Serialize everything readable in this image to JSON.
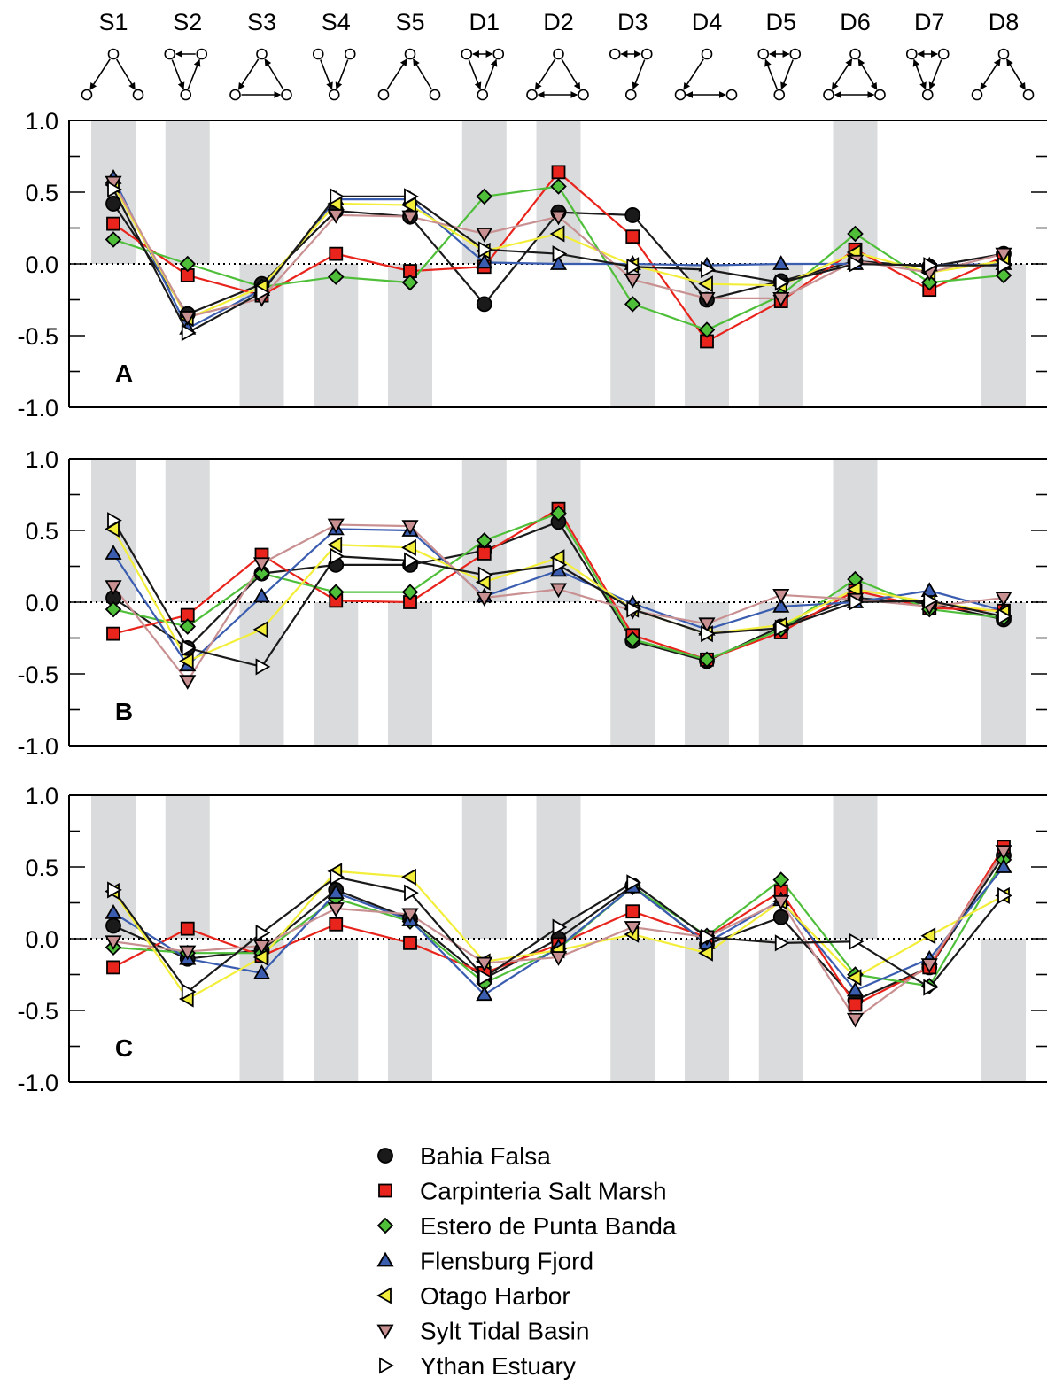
{
  "motifs": [
    "S1",
    "S2",
    "S3",
    "S4",
    "S5",
    "D1",
    "D2",
    "D3",
    "D4",
    "D5",
    "D6",
    "D7",
    "D8"
  ],
  "yticks": [
    "1.0",
    "0.5",
    "0.0",
    "-0.5",
    "-1.0"
  ],
  "shaded": [
    [
      0,
      1,
      5,
      6,
      10
    ],
    [
      0,
      1,
      5,
      6,
      10
    ],
    [
      0,
      1,
      5,
      6,
      10
    ]
  ],
  "shaded_below": [
    [
      2,
      3,
      4,
      7,
      8,
      9,
      12
    ],
    [
      2,
      3,
      4,
      7,
      8,
      9,
      12
    ],
    [
      2,
      3,
      4,
      7,
      8,
      9,
      12
    ]
  ],
  "series_style": [
    {
      "color": "#1a1a1a",
      "marker": "circle"
    },
    {
      "color": "#e8241c",
      "marker": "square"
    },
    {
      "color": "#4fbf3a",
      "marker": "diamond"
    },
    {
      "color": "#3a5db0",
      "marker": "triangle-up"
    },
    {
      "color": "#f2ee3a",
      "marker": "triangle-left"
    },
    {
      "color": "#c99092",
      "marker": "triangle-down"
    },
    {
      "color": "#ffffff",
      "marker": "triangle-right"
    }
  ],
  "chart_data": [
    {
      "type": "line",
      "panel_label": "A",
      "categories": [
        "S1",
        "S2",
        "S3",
        "S4",
        "S5",
        "D1",
        "D2",
        "D3",
        "D4",
        "D5",
        "D6",
        "D7",
        "D8"
      ],
      "ylim": [
        -1.0,
        1.0
      ],
      "series": [
        {
          "name": "Bahia Falsa",
          "values": [
            0.42,
            -0.35,
            -0.14,
            0.37,
            0.33,
            -0.28,
            0.36,
            0.34,
            -0.25,
            -0.12,
            0.02,
            -0.02,
            0.07
          ]
        },
        {
          "name": "Carpinteria Salt Marsh",
          "values": [
            0.28,
            -0.08,
            -0.22,
            0.07,
            -0.05,
            -0.02,
            0.64,
            0.19,
            -0.54,
            -0.26,
            0.1,
            -0.18,
            0.05
          ]
        },
        {
          "name": "Estero de Punta Banda",
          "values": [
            0.17,
            0.0,
            -0.16,
            -0.09,
            -0.13,
            0.47,
            0.54,
            -0.28,
            -0.46,
            -0.22,
            0.21,
            -0.13,
            -0.08
          ]
        },
        {
          "name": "Flensburg Fjord",
          "values": [
            0.6,
            -0.45,
            -0.18,
            0.45,
            0.45,
            0.01,
            0.0,
            0.0,
            -0.01,
            0.0,
            0.0,
            -0.01,
            0.0
          ]
        },
        {
          "name": "Otago Harbor",
          "values": [
            0.55,
            -0.38,
            -0.16,
            0.42,
            0.41,
            0.09,
            0.21,
            -0.01,
            -0.14,
            -0.15,
            0.08,
            -0.06,
            0.02
          ]
        },
        {
          "name": "Sylt Tidal Basin",
          "values": [
            0.57,
            -0.37,
            -0.24,
            0.34,
            0.33,
            0.21,
            0.33,
            -0.11,
            -0.24,
            -0.24,
            0.02,
            -0.06,
            0.07
          ]
        },
        {
          "name": "Ythan Estuary",
          "values": [
            0.52,
            -0.48,
            -0.2,
            0.47,
            0.47,
            0.1,
            0.07,
            -0.02,
            -0.04,
            -0.13,
            0.0,
            -0.01,
            -0.01
          ]
        }
      ]
    },
    {
      "type": "line",
      "panel_label": "B",
      "categories": [
        "S1",
        "S2",
        "S3",
        "S4",
        "S5",
        "D1",
        "D2",
        "D3",
        "D4",
        "D5",
        "D6",
        "D7",
        "D8"
      ],
      "ylim": [
        -1.0,
        1.0
      ],
      "series": [
        {
          "name": "Bahia Falsa",
          "values": [
            0.03,
            -0.32,
            0.2,
            0.26,
            0.26,
            0.36,
            0.56,
            -0.27,
            -0.41,
            -0.17,
            0.03,
            -0.01,
            -0.12
          ]
        },
        {
          "name": "Carpinteria Salt Marsh",
          "values": [
            -0.22,
            -0.09,
            0.33,
            0.01,
            0.0,
            0.34,
            0.65,
            -0.23,
            -0.4,
            -0.21,
            0.08,
            -0.04,
            -0.06
          ]
        },
        {
          "name": "Estero de Punta Banda",
          "values": [
            -0.05,
            -0.17,
            0.2,
            0.07,
            0.07,
            0.43,
            0.62,
            -0.26,
            -0.4,
            -0.19,
            0.16,
            -0.05,
            -0.11
          ]
        },
        {
          "name": "Flensburg Fjord",
          "values": [
            0.34,
            -0.44,
            0.04,
            0.51,
            0.5,
            0.04,
            0.22,
            -0.01,
            -0.19,
            -0.03,
            0.0,
            0.08,
            -0.06
          ]
        },
        {
          "name": "Otago Harbor",
          "values": [
            0.51,
            -0.41,
            -0.19,
            0.4,
            0.38,
            0.14,
            0.31,
            -0.05,
            -0.22,
            -0.16,
            0.09,
            0.0,
            -0.07
          ]
        },
        {
          "name": "Sylt Tidal Basin",
          "values": [
            0.11,
            -0.55,
            0.27,
            0.54,
            0.53,
            0.03,
            0.09,
            -0.06,
            -0.15,
            0.05,
            0.02,
            -0.03,
            0.03
          ]
        },
        {
          "name": "Ythan Estuary",
          "values": [
            0.57,
            -0.32,
            -0.45,
            0.32,
            0.29,
            0.19,
            0.26,
            -0.05,
            -0.22,
            -0.18,
            0.0,
            0.01,
            -0.1
          ]
        }
      ]
    },
    {
      "type": "line",
      "panel_label": "C",
      "categories": [
        "S1",
        "S2",
        "S3",
        "S4",
        "S5",
        "D1",
        "D2",
        "D3",
        "D4",
        "D5",
        "D6",
        "D7",
        "D8"
      ],
      "ylim": [
        -1.0,
        1.0
      ],
      "series": [
        {
          "name": "Bahia Falsa",
          "values": [
            0.09,
            -0.14,
            -0.08,
            0.34,
            0.14,
            -0.28,
            0.0,
            0.37,
            -0.04,
            0.15,
            -0.43,
            -0.2,
            0.58
          ]
        },
        {
          "name": "Carpinteria Salt Marsh",
          "values": [
            -0.2,
            0.07,
            -0.12,
            0.1,
            -0.03,
            -0.24,
            -0.04,
            0.19,
            0.01,
            0.33,
            -0.46,
            -0.2,
            0.64
          ]
        },
        {
          "name": "Estero de Punta Banda",
          "values": [
            -0.06,
            -0.1,
            -0.1,
            0.28,
            0.12,
            -0.31,
            -0.07,
            0.36,
            0.02,
            0.41,
            -0.25,
            -0.33,
            0.55
          ]
        },
        {
          "name": "Flensburg Fjord",
          "values": [
            0.18,
            -0.14,
            -0.24,
            0.32,
            0.13,
            -0.39,
            -0.06,
            0.36,
            -0.03,
            0.27,
            -0.36,
            -0.14,
            0.5
          ]
        },
        {
          "name": "Otago Harbor",
          "values": [
            0.33,
            -0.42,
            -0.13,
            0.47,
            0.43,
            -0.16,
            -0.08,
            0.03,
            -0.1,
            0.26,
            -0.27,
            0.02,
            0.3
          ]
        },
        {
          "name": "Sylt Tidal Basin",
          "values": [
            -0.02,
            -0.09,
            -0.05,
            0.21,
            0.17,
            -0.17,
            -0.13,
            0.08,
            0.01,
            0.26,
            -0.56,
            -0.18,
            0.61
          ]
        },
        {
          "name": "Ythan Estuary",
          "values": [
            0.34,
            -0.37,
            0.04,
            0.43,
            0.32,
            -0.27,
            0.08,
            0.39,
            0.01,
            -0.03,
            -0.02,
            -0.34,
            0.3
          ]
        }
      ]
    }
  ]
}
